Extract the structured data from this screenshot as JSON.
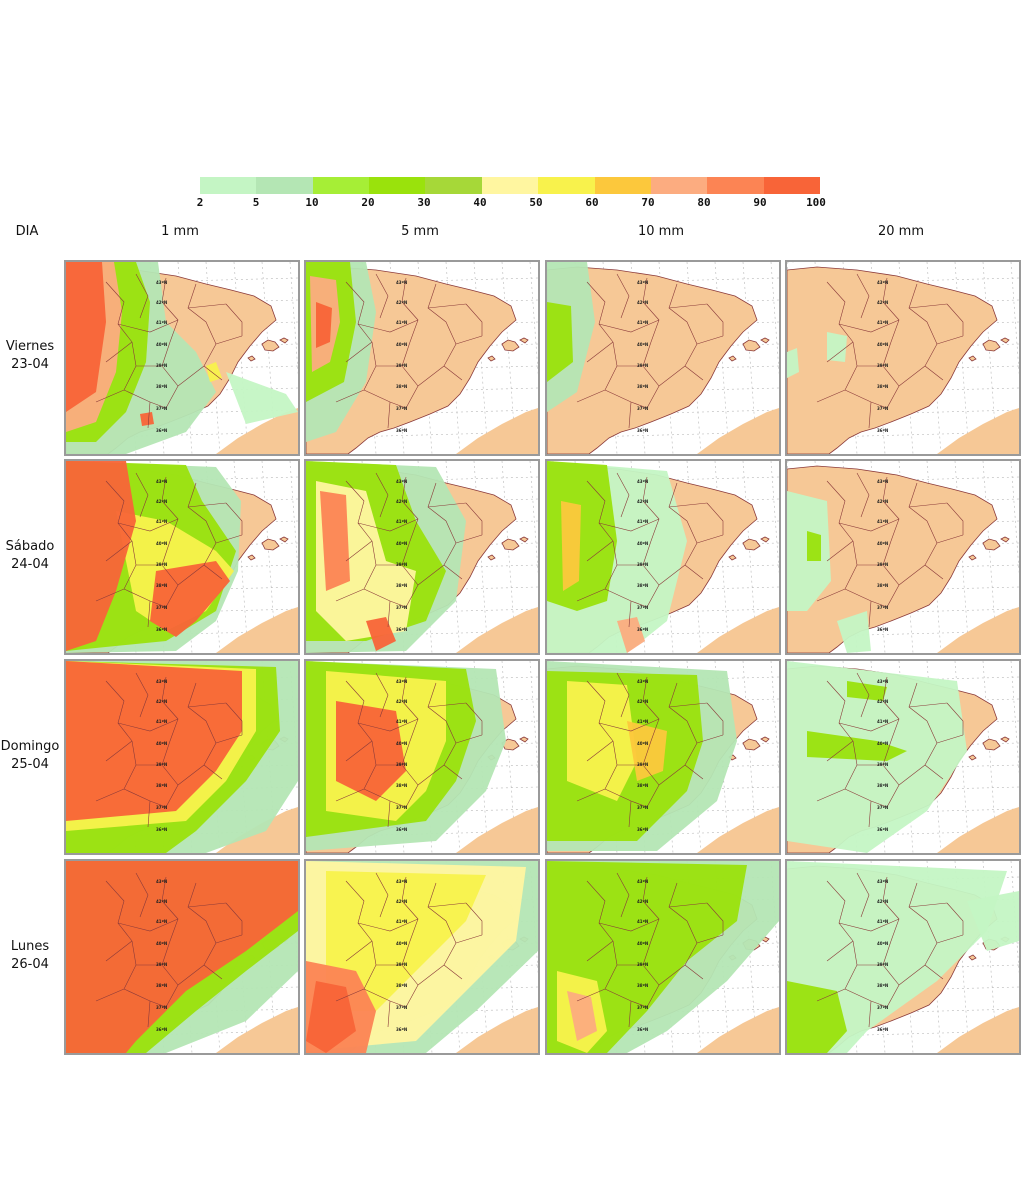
{
  "legend": {
    "ticks": [
      "2",
      "5",
      "10",
      "20",
      "30",
      "40",
      "50",
      "60",
      "70",
      "80",
      "90",
      "100"
    ],
    "colors": [
      "#c4f5c4",
      "#b4e6b4",
      "#a6ee36",
      "#9ae20c",
      "#a6d838",
      "#fff6a0",
      "#f8f24c",
      "#fcc83c",
      "#fcac80",
      "#fc8454",
      "#f86438"
    ]
  },
  "header": {
    "dia": "DIA",
    "thresholds": [
      "1 mm",
      "5 mm",
      "10 mm",
      "20 mm"
    ]
  },
  "days": [
    {
      "name": "Viernes",
      "date": "23-04"
    },
    {
      "name": "Sábado",
      "date": "24-04"
    },
    {
      "name": "Domingo",
      "date": "25-04"
    },
    {
      "name": "Lunes",
      "date": "26-04"
    }
  ],
  "map": {
    "land_color": "#f6c896",
    "sea_color": "#ffffff",
    "border_color": "#8b3a3a",
    "graticule_color": "#b8b8b8",
    "lat_labels": [
      "43ºN",
      "42ºN",
      "41ºN",
      "40ºN",
      "39ºN",
      "38ºN",
      "37ºN",
      "36ºN"
    ]
  },
  "panels": [
    [
      "viernes-1mm",
      "viernes-5mm",
      "viernes-10mm",
      "viernes-20mm"
    ],
    [
      "sabado-1mm",
      "sabado-5mm",
      "sabado-10mm",
      "sabado-20mm"
    ],
    [
      "domingo-1mm",
      "domingo-5mm",
      "domingo-10mm",
      "domingo-20mm"
    ],
    [
      "lunes-1mm",
      "lunes-5mm",
      "lunes-10mm",
      "lunes-20mm"
    ]
  ]
}
